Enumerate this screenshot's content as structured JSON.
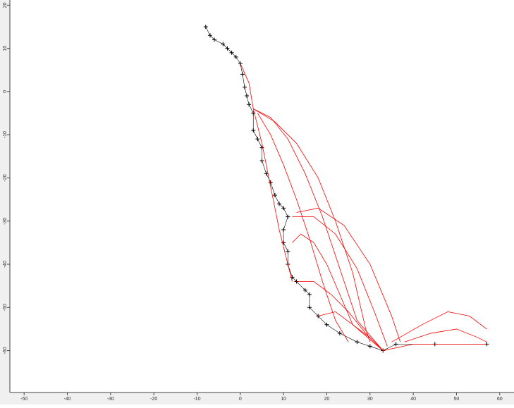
{
  "chart_data": {
    "type": "line",
    "xlim": [
      -53.3,
      63.3
    ],
    "ylim": [
      -69.7,
      21.2
    ],
    "xticks": [
      -50,
      -40,
      -30,
      -20,
      -10,
      0,
      10,
      20,
      30,
      40,
      50,
      60
    ],
    "yticks": [
      20,
      10,
      0,
      -10,
      -20,
      -30,
      -40,
      -50,
      -60
    ],
    "series": [
      {
        "color": "#000000",
        "marker": "+",
        "x": [
          -8,
          -7,
          -6,
          -4,
          -3,
          -2,
          -1,
          0,
          0.5,
          1,
          1.5,
          2,
          3,
          3,
          4,
          5,
          5,
          6,
          7,
          8,
          9,
          10,
          11,
          10,
          10,
          11,
          11,
          12,
          13,
          15,
          16,
          16,
          18,
          20,
          23,
          27,
          30,
          33,
          36,
          45,
          57
        ],
        "values": [
          15,
          13,
          12,
          11,
          10,
          9,
          8,
          6.5,
          4,
          1,
          -1,
          -3,
          -5,
          -9,
          -11,
          -13,
          -16,
          -19,
          -21,
          -24,
          -26,
          -27,
          -29,
          -32,
          -35,
          -37,
          -40,
          -43,
          -44,
          -46,
          -47,
          -50,
          -52,
          -54,
          -56,
          -58,
          -59,
          -60,
          -58.5,
          -58.5,
          -58.5
        ]
      },
      {
        "color": "#ff0000",
        "x": [
          0,
          2,
          3,
          5,
          7,
          9,
          11,
          12
        ],
        "values": [
          6.5,
          2,
          -4,
          -12,
          -22,
          -32,
          -40,
          -44
        ]
      },
      {
        "color": "#ff0000",
        "x": [
          3,
          8,
          13,
          18,
          22,
          26,
          29,
          30
        ],
        "values": [
          -4,
          -7,
          -12,
          -20,
          -30,
          -42,
          -55,
          -58
        ]
      },
      {
        "color": "#ff0000",
        "x": [
          3,
          7,
          11,
          15,
          19,
          23,
          27,
          33
        ],
        "values": [
          -4,
          -6,
          -11,
          -19,
          -29,
          -41,
          -53,
          -60
        ]
      },
      {
        "color": "#ff0000",
        "x": [
          4,
          7,
          10,
          13,
          16,
          19,
          22,
          25
        ],
        "values": [
          -5,
          -10,
          -17,
          -25,
          -34,
          -44,
          -53,
          -58
        ]
      },
      {
        "color": "#ff0000",
        "x": [
          13,
          18,
          24,
          30,
          35,
          37
        ],
        "values": [
          -28,
          -27,
          -31,
          -40,
          -52,
          -58
        ]
      },
      {
        "color": "#ff0000",
        "x": [
          12,
          17,
          22,
          27,
          31,
          34
        ],
        "values": [
          -29,
          -29,
          -33,
          -41,
          -51,
          -59
        ]
      },
      {
        "color": "#ff0000",
        "x": [
          12,
          14,
          17,
          20,
          23,
          26,
          33
        ],
        "values": [
          -35,
          -33,
          -35,
          -40,
          -47,
          -54,
          -60
        ]
      },
      {
        "color": "#ff0000",
        "x": [
          13,
          17,
          21,
          25,
          29,
          33
        ],
        "values": [
          -44,
          -44,
          -47,
          -51,
          -56,
          -60
        ]
      },
      {
        "color": "#ff0000",
        "x": [
          18,
          22,
          26,
          30,
          33
        ],
        "values": [
          -52,
          -51,
          -54,
          -57,
          -60
        ]
      },
      {
        "color": "#ff0000",
        "x": [
          35,
          42,
          48,
          53,
          57
        ],
        "values": [
          -58,
          -54,
          -51,
          -52,
          -55
        ]
      },
      {
        "color": "#ff0000",
        "x": [
          38,
          44,
          50,
          55,
          57
        ],
        "values": [
          -58,
          -56,
          -55,
          -57,
          -58
        ]
      },
      {
        "color": "#ff0000",
        "x": [
          33,
          40,
          50,
          57
        ],
        "values": [
          -60,
          -58.5,
          -58.5,
          -58.5
        ]
      }
    ]
  }
}
